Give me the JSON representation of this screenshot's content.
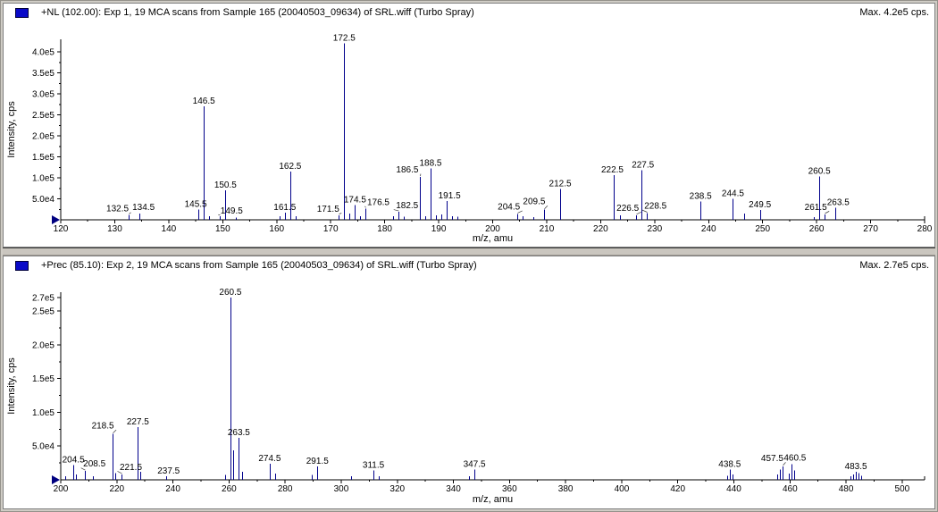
{
  "window": {
    "bg_color": "#d0cdc6",
    "panel_bg": "#ffffff",
    "trace_color": "#00008b",
    "axis_color": "#000000",
    "icons": {
      "pane_indicator": "blue-square",
      "trace_start_marker": "right-pointing-triangle"
    }
  },
  "panels": [
    {
      "title": "+NL (102.00): Exp 1, 19 MCA scans from Sample 165 (20040503_09634) of SRL.wiff (Turbo Spray)",
      "max_label": "Max. 4.2e5 cps."
    },
    {
      "title": "+Prec (85.10): Exp 2, 19 MCA scans from Sample 165 (20040503_09634) of SRL.wiff (Turbo Spray)",
      "max_label": "Max. 2.7e5 cps."
    }
  ],
  "chart_data": [
    {
      "type": "bar",
      "subtype": "mass-spectrum-stick-plot",
      "title": "+NL (102.00): Exp 1, 19 MCA scans from Sample 165 (20040503_09634) of SRL.wiff (Turbo Spray)",
      "max_annotation": "Max. 4.2e5 cps.",
      "xlabel": "m/z, amu",
      "ylabel": "Intensity, cps",
      "xlim": [
        120,
        280
      ],
      "ylim": [
        0,
        430000
      ],
      "grid": false,
      "xticks": {
        "major": 10,
        "minor": 5,
        "label_min": 120,
        "label_max": 280
      },
      "yticks": [
        {
          "v": 50000,
          "label": "5.0e4"
        },
        {
          "v": 100000,
          "label": "1.0e5"
        },
        {
          "v": 150000,
          "label": "1.5e5"
        },
        {
          "v": 200000,
          "label": "2.0e5"
        },
        {
          "v": 250000,
          "label": "2.5e5"
        },
        {
          "v": 300000,
          "label": "3.0e5"
        },
        {
          "v": 350000,
          "label": "3.5e5"
        },
        {
          "v": 400000,
          "label": "4.0e5"
        }
      ],
      "ytick_minor_step": 25000,
      "peaks": [
        {
          "mz": 132.5,
          "i": 12000,
          "label": "132.5",
          "lo": [
            -12,
            -1
          ],
          "ldr": true
        },
        {
          "mz": 134.5,
          "i": 15000,
          "label": "134.5",
          "lo": [
            5,
            -1
          ]
        },
        {
          "mz": 145.5,
          "i": 25000,
          "label": "145.5",
          "lo": [
            -3,
            0
          ]
        },
        {
          "mz": 146.5,
          "i": 270000,
          "label": "146.5"
        },
        {
          "mz": 147.5,
          "i": 8000
        },
        {
          "mz": 149.5,
          "i": 9000,
          "label": "149.5",
          "lo": [
            13,
            0
          ],
          "ldr": true
        },
        {
          "mz": 150.5,
          "i": 70000,
          "label": "150.5"
        },
        {
          "mz": 152.5,
          "i": 5000
        },
        {
          "mz": 160.5,
          "i": 9000
        },
        {
          "mz": 161.5,
          "i": 17000,
          "label": "161.5"
        },
        {
          "mz": 162.5,
          "i": 115000,
          "label": "162.5"
        },
        {
          "mz": 163.5,
          "i": 9000
        },
        {
          "mz": 171.5,
          "i": 11000,
          "label": "171.5",
          "lo": [
            -12,
            -1
          ],
          "ldr": true
        },
        {
          "mz": 172.5,
          "i": 420000,
          "label": "172.5"
        },
        {
          "mz": 173.5,
          "i": 15000
        },
        {
          "mz": 174.5,
          "i": 35000,
          "label": "174.5"
        },
        {
          "mz": 175.5,
          "i": 8000
        },
        {
          "mz": 176.5,
          "i": 27000,
          "label": "176.5",
          "lo": [
            14,
            -1
          ],
          "ldr": true
        },
        {
          "mz": 181.5,
          "i": 8000
        },
        {
          "mz": 182.5,
          "i": 19000,
          "label": "182.5",
          "lo": [
            10,
            -1
          ],
          "ldr": true
        },
        {
          "mz": 183.5,
          "i": 7000
        },
        {
          "mz": 186.5,
          "i": 102000,
          "label": "186.5",
          "lo": [
            -14,
            -2
          ],
          "ldr": true
        },
        {
          "mz": 187.5,
          "i": 9000
        },
        {
          "mz": 188.5,
          "i": 122000,
          "label": "188.5"
        },
        {
          "mz": 189.5,
          "i": 11000
        },
        {
          "mz": 190.5,
          "i": 13000
        },
        {
          "mz": 191.5,
          "i": 45000,
          "label": "191.5",
          "lo": [
            3,
            0
          ]
        },
        {
          "mz": 192.5,
          "i": 9000
        },
        {
          "mz": 193.5,
          "i": 7000
        },
        {
          "mz": 204.5,
          "i": 14000,
          "label": "204.5",
          "lo": [
            -9,
            -2
          ],
          "ldr": true
        },
        {
          "mz": 205.5,
          "i": 8000
        },
        {
          "mz": 207.5,
          "i": 6000
        },
        {
          "mz": 209.5,
          "i": 24000,
          "label": "209.5",
          "lo": [
            -11,
            -3
          ],
          "ldr": true
        },
        {
          "mz": 212.5,
          "i": 73000,
          "label": "212.5"
        },
        {
          "mz": 222.5,
          "i": 106000,
          "label": "222.5",
          "lo": [
            -2,
            0
          ]
        },
        {
          "mz": 223.5,
          "i": 11000
        },
        {
          "mz": 226.5,
          "i": 11000,
          "label": "226.5",
          "lo": [
            -9,
            -2
          ],
          "ldr": true
        },
        {
          "mz": 227.5,
          "i": 118000,
          "label": "227.5",
          "lo": [
            2,
            0
          ]
        },
        {
          "mz": 228.5,
          "i": 16000,
          "label": "228.5",
          "lo": [
            10,
            -2
          ],
          "ldr": true
        },
        {
          "mz": 238.5,
          "i": 44000,
          "label": "238.5"
        },
        {
          "mz": 244.5,
          "i": 50000,
          "label": "244.5"
        },
        {
          "mz": 246.5,
          "i": 15000
        },
        {
          "mz": 249.5,
          "i": 23000,
          "label": "249.5"
        },
        {
          "mz": 259.5,
          "i": 6000
        },
        {
          "mz": 260.5,
          "i": 103000,
          "label": "260.5"
        },
        {
          "mz": 261.5,
          "i": 13000,
          "label": "261.5",
          "lo": [
            -10,
            -2
          ],
          "ldr": true
        },
        {
          "mz": 263.5,
          "i": 29000,
          "label": "263.5",
          "lo": [
            3,
            0
          ]
        }
      ]
    },
    {
      "type": "bar",
      "subtype": "mass-spectrum-stick-plot",
      "title": "+Prec (85.10): Exp 2, 19 MCA scans from Sample 165 (20040503_09634) of SRL.wiff (Turbo Spray)",
      "max_annotation": "Max. 2.7e5 cps.",
      "xlabel": "m/z, amu",
      "ylabel": "Intensity, cps",
      "xlim": [
        200,
        508
      ],
      "ylim": [
        0,
        278000
      ],
      "grid": false,
      "xticks": {
        "major": 20,
        "minor": 10,
        "label_min": 200,
        "label_max": 500
      },
      "yticks": [
        {
          "v": 50000,
          "label": "5.0e4"
        },
        {
          "v": 100000,
          "label": "1.0e5"
        },
        {
          "v": 150000,
          "label": "1.5e5"
        },
        {
          "v": 200000,
          "label": "2.0e5"
        },
        {
          "v": 250000,
          "label": "2.5e5"
        },
        {
          "v": 270000,
          "label": "2.7e5"
        }
      ],
      "ytick_minor_step": 25000,
      "peaks": [
        {
          "mz": 201.5,
          "i": 5000
        },
        {
          "mz": 204.5,
          "i": 22000,
          "label": "204.5"
        },
        {
          "mz": 205.5,
          "i": 8000
        },
        {
          "mz": 208.5,
          "i": 13000,
          "label": "208.5",
          "lo": [
            11,
            -2
          ],
          "ldr": true
        },
        {
          "mz": 211.5,
          "i": 5000
        },
        {
          "mz": 218.5,
          "i": 68000,
          "label": "218.5",
          "lo": [
            -11,
            -3
          ],
          "ldr": true
        },
        {
          "mz": 219.5,
          "i": 10000
        },
        {
          "mz": 221.5,
          "i": 8000,
          "label": "221.5",
          "lo": [
            11,
            -2
          ],
          "ldr": true
        },
        {
          "mz": 227.5,
          "i": 78000,
          "label": "227.5"
        },
        {
          "mz": 228.5,
          "i": 12000
        },
        {
          "mz": 237.5,
          "i": 5000,
          "label": "237.5",
          "lo": [
            3,
            0
          ]
        },
        {
          "mz": 258.5,
          "i": 7000
        },
        {
          "mz": 260.5,
          "i": 270000,
          "label": "260.5"
        },
        {
          "mz": 261.5,
          "i": 44000
        },
        {
          "mz": 263.5,
          "i": 62000,
          "label": "263.5"
        },
        {
          "mz": 264.5,
          "i": 12000
        },
        {
          "mz": 274.5,
          "i": 24000,
          "label": "274.5"
        },
        {
          "mz": 276.5,
          "i": 9000
        },
        {
          "mz": 289.5,
          "i": 7000
        },
        {
          "mz": 291.5,
          "i": 20000,
          "label": "291.5"
        },
        {
          "mz": 303.5,
          "i": 5000
        },
        {
          "mz": 311.5,
          "i": 14000,
          "label": "311.5"
        },
        {
          "mz": 313.5,
          "i": 5000
        },
        {
          "mz": 345.5,
          "i": 5000
        },
        {
          "mz": 347.5,
          "i": 15000,
          "label": "347.5"
        },
        {
          "mz": 437.5,
          "i": 6000
        },
        {
          "mz": 438.5,
          "i": 15000,
          "label": "438.5"
        },
        {
          "mz": 439.5,
          "i": 8000
        },
        {
          "mz": 455.5,
          "i": 8000
        },
        {
          "mz": 456.5,
          "i": 15000
        },
        {
          "mz": 457.5,
          "i": 20000,
          "label": "457.5",
          "lo": [
            -12,
            -3
          ],
          "ldr": true
        },
        {
          "mz": 459.5,
          "i": 9000
        },
        {
          "mz": 460.5,
          "i": 23000,
          "label": "460.5",
          "lo": [
            4,
            -1
          ]
        },
        {
          "mz": 461.5,
          "i": 14000
        },
        {
          "mz": 481.5,
          "i": 5000
        },
        {
          "mz": 482.5,
          "i": 8000
        },
        {
          "mz": 483.5,
          "i": 12000,
          "label": "483.5"
        },
        {
          "mz": 484.5,
          "i": 10000
        },
        {
          "mz": 485.5,
          "i": 6000
        }
      ]
    }
  ]
}
